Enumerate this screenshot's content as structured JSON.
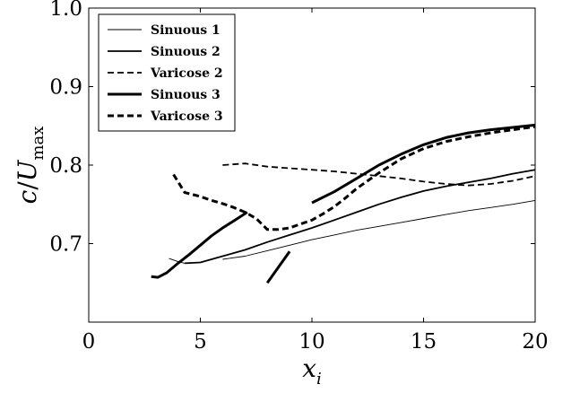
{
  "chart_data": {
    "type": "line",
    "title": "",
    "xlabel": "x_i",
    "ylabel": "c/U_max",
    "xlim": [
      0,
      20
    ],
    "ylim": [
      0.6,
      1.0
    ],
    "x_ticks": [
      0,
      5,
      10,
      15,
      20
    ],
    "y_ticks": [
      0.7,
      0.8,
      0.9,
      1.0
    ],
    "x_tick_labels": [
      "0",
      "5",
      "10",
      "15",
      "20"
    ],
    "y_tick_labels": [
      "0.7",
      "0.8",
      "0.9",
      "1.0"
    ],
    "grid": false,
    "legend_position": "top-left",
    "series": [
      {
        "name": "Sinuous 1",
        "style": "solid",
        "weight": "thin",
        "segments": [
          {
            "x": [
              6,
              7,
              8,
              9,
              10,
              11,
              12,
              13,
              14,
              15,
              16,
              17,
              18,
              19,
              20
            ],
            "y": [
              0.68,
              0.684,
              0.691,
              0.698,
              0.705,
              0.711,
              0.717,
              0.722,
              0.727,
              0.732,
              0.737,
              0.742,
              0.746,
              0.75,
              0.755
            ]
          },
          {
            "x": [
              3.6,
              4.0,
              4.3
            ],
            "y": [
              0.681,
              0.677,
              0.675
            ]
          }
        ]
      },
      {
        "name": "Sinuous 2",
        "style": "solid",
        "weight": "medium",
        "segments": [
          {
            "x": [
              4.3,
              5,
              6,
              7,
              8,
              9,
              10,
              11,
              12,
              13,
              14,
              15,
              16,
              17,
              18,
              19,
              20
            ],
            "y": [
              0.675,
              0.676,
              0.684,
              0.692,
              0.702,
              0.711,
              0.72,
              0.73,
              0.74,
              0.75,
              0.759,
              0.767,
              0.773,
              0.778,
              0.783,
              0.789,
              0.794
            ]
          }
        ]
      },
      {
        "name": "Varicose 2",
        "style": "dashed",
        "weight": "medium",
        "segments": [
          {
            "x": [
              6,
              7,
              8,
              9,
              10,
              11,
              12,
              13,
              14,
              15,
              16,
              17,
              18,
              19,
              20
            ],
            "y": [
              0.8,
              0.802,
              0.798,
              0.796,
              0.794,
              0.792,
              0.789,
              0.786,
              0.783,
              0.779,
              0.776,
              0.774,
              0.776,
              0.78,
              0.786
            ]
          }
        ]
      },
      {
        "name": "Sinuous 3",
        "style": "solid",
        "weight": "thick",
        "segments": [
          {
            "x": [
              2.8,
              3.1,
              3.5,
              4,
              4.5,
              5,
              5.5,
              6,
              6.5,
              7.1
            ],
            "y": [
              0.658,
              0.657,
              0.663,
              0.675,
              0.686,
              0.698,
              0.71,
              0.72,
              0.729,
              0.74
            ]
          },
          {
            "x": [
              8,
              9
            ],
            "y": [
              0.65,
              0.69
            ]
          },
          {
            "x": [
              10,
              11,
              12,
              13,
              14,
              15,
              16,
              17,
              18,
              19,
              20
            ],
            "y": [
              0.752,
              0.766,
              0.783,
              0.8,
              0.814,
              0.826,
              0.835,
              0.841,
              0.845,
              0.848,
              0.851
            ]
          }
        ]
      },
      {
        "name": "Varicose 3",
        "style": "dashed",
        "weight": "thick",
        "segments": [
          {
            "x": [
              3.8,
              4.3,
              5,
              5.5,
              6,
              6.5,
              7,
              7.5,
              8,
              8.5,
              9,
              9.5,
              10,
              10.5,
              11,
              11.5,
              12,
              13,
              14,
              15,
              16,
              17,
              18,
              19,
              20
            ],
            "y": [
              0.788,
              0.765,
              0.76,
              0.755,
              0.751,
              0.746,
              0.74,
              0.732,
              0.718,
              0.718,
              0.72,
              0.725,
              0.73,
              0.738,
              0.747,
              0.758,
              0.77,
              0.79,
              0.808,
              0.821,
              0.83,
              0.836,
              0.841,
              0.845,
              0.849
            ]
          }
        ]
      }
    ]
  }
}
